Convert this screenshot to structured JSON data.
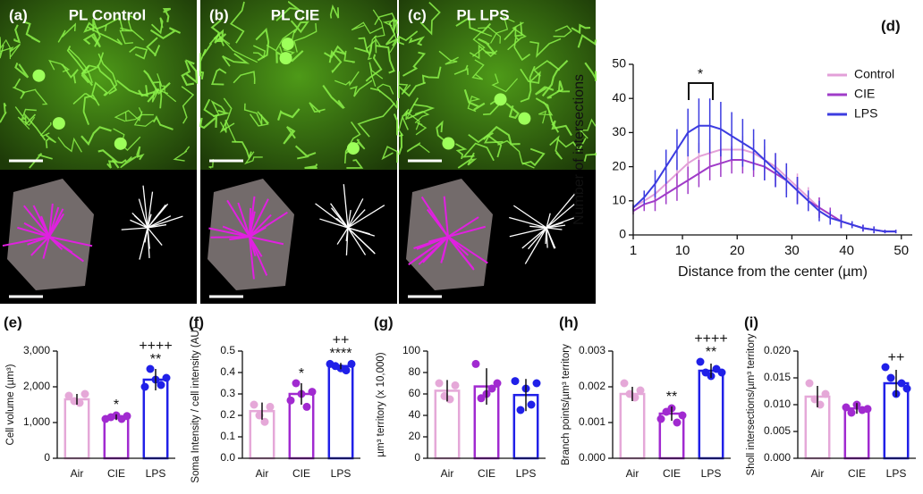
{
  "images": [
    {
      "label": "(a)",
      "title": "PL Control"
    },
    {
      "label": "(b)",
      "title": "PL CIE"
    },
    {
      "label": "(c)",
      "title": "PL LPS"
    }
  ],
  "chart_data": [
    {
      "type": "line",
      "label": "(d)",
      "xlabel": "Distance from the center (µm)",
      "ylabel": "Number of intersections",
      "annotation": "*",
      "x": [
        1,
        3,
        5,
        7,
        9,
        11,
        13,
        15,
        17,
        19,
        21,
        23,
        25,
        27,
        29,
        31,
        33,
        35,
        37,
        39,
        41,
        43,
        45,
        47,
        49
      ],
      "series": [
        {
          "name": "Control",
          "color": "#e3a0d8",
          "values": [
            8,
            10,
            12,
            15,
            18,
            21,
            23,
            24,
            25,
            25,
            25,
            24,
            22,
            20,
            17,
            14,
            11,
            8,
            6,
            4,
            3,
            2,
            1.5,
            1,
            1
          ],
          "errors": [
            1,
            2,
            3,
            3,
            4,
            4,
            4,
            4,
            4,
            4,
            4,
            4,
            4,
            4,
            4,
            4,
            3,
            3,
            2,
            2,
            1,
            1,
            1,
            0.5,
            0.5
          ]
        },
        {
          "name": "CIE",
          "color": "#a03cc8",
          "values": [
            7,
            9,
            10,
            12,
            14,
            16,
            18,
            20,
            21,
            22,
            22,
            21,
            20,
            18,
            16,
            13,
            10,
            8,
            6,
            4,
            3,
            2,
            1.5,
            1,
            1
          ],
          "errors": [
            1,
            2,
            3,
            3,
            4,
            4,
            4,
            4,
            4,
            4,
            4,
            4,
            4,
            4,
            4,
            4,
            3,
            3,
            2,
            2,
            1,
            1,
            1,
            0.5,
            0.5
          ]
        },
        {
          "name": "LPS",
          "color": "#3c3ce0",
          "values": [
            8,
            11,
            15,
            20,
            25,
            30,
            32,
            32,
            31,
            29,
            27,
            25,
            22,
            19,
            16,
            13,
            10,
            7,
            5,
            4,
            3,
            2,
            1.5,
            1,
            1
          ],
          "errors": [
            1,
            2,
            4,
            5,
            6,
            7,
            8,
            8,
            8,
            7,
            7,
            6,
            6,
            5,
            5,
            4,
            3,
            3,
            2,
            2,
            1,
            1,
            1,
            0.5,
            0.5
          ]
        }
      ],
      "xlim": [
        1,
        52
      ],
      "xticks": [
        1,
        10,
        20,
        30,
        40,
        50
      ],
      "ylim": [
        0,
        50
      ],
      "yticks": [
        0,
        10,
        20,
        30,
        40,
        50
      ],
      "legend": "upper right"
    },
    {
      "type": "bar",
      "label": "(e)",
      "ylabel": "Cell volume  (µm³)",
      "categories": [
        "Air",
        "CIE",
        "LPS"
      ],
      "colors": [
        "#e5a8d8",
        "#a12ad0",
        "#2020e8"
      ],
      "values": [
        1650,
        1150,
        2200
      ],
      "errors": [
        150,
        80,
        300
      ],
      "points": [
        [
          1750,
          1600,
          1550,
          1800
        ],
        [
          1100,
          1150,
          1200,
          1100,
          1180
        ],
        [
          2000,
          2500,
          2200,
          2050,
          2250
        ]
      ],
      "annotations": [
        [],
        [
          "*"
        ],
        [
          "++++",
          "**"
        ]
      ],
      "ylim": [
        0,
        3000
      ],
      "yticks": [
        0,
        {
          "value": 1000,
          "label": "1,000"
        },
        {
          "value": 2000,
          "label": "2,000"
        },
        {
          "value": 3000,
          "label": "3,000"
        }
      ]
    },
    {
      "type": "bar",
      "label": "(f)",
      "ylabel": "Soma Intensity / cell intensity (AU)",
      "categories": [
        "Air",
        "CIE",
        "LPS"
      ],
      "colors": [
        "#e5a8d8",
        "#a12ad0",
        "#2020e8"
      ],
      "values": [
        0.22,
        0.3,
        0.43
      ],
      "errors": [
        0.04,
        0.05,
        0.015
      ],
      "points": [
        [
          0.25,
          0.2,
          0.17,
          0.24
        ],
        [
          0.27,
          0.35,
          0.3,
          0.24,
          0.31
        ],
        [
          0.44,
          0.43,
          0.42,
          0.41,
          0.44
        ]
      ],
      "annotations": [
        [],
        [
          "*"
        ],
        [
          "++",
          "****"
        ]
      ],
      "ylim": [
        0,
        0.5
      ],
      "yticks": [
        {
          "value": 0,
          "label": "0.0"
        },
        0.1,
        0.2,
        0.3,
        0.4,
        0.5
      ]
    },
    {
      "type": "bar",
      "label": "(g)",
      "ylabel": "µm³ territory (x 10,000)",
      "categories": [
        "Air",
        "CIE",
        "LPS"
      ],
      "colors": [
        "#e5a8d8",
        "#a12ad0",
        "#2020e8"
      ],
      "values": [
        63,
        67,
        59
      ],
      "errors": [
        10,
        17,
        15
      ],
      "points": [
        [
          70,
          58,
          55,
          68
        ],
        [
          88,
          56,
          60,
          65,
          70
        ],
        [
          72,
          45,
          65,
          50,
          70
        ]
      ],
      "annotations": [
        [],
        [],
        []
      ],
      "ylim": [
        0,
        100
      ],
      "yticks": [
        0,
        20,
        40,
        60,
        80,
        100
      ]
    },
    {
      "type": "bar",
      "label": "(h)",
      "ylabel": "Branch points/µm³ territory",
      "categories": [
        "Air",
        "CIE",
        "LPS"
      ],
      "colors": [
        "#e5a8d8",
        "#a12ad0",
        "#2020e8"
      ],
      "values": [
        0.0018,
        0.00125,
        0.00245
      ],
      "errors": [
        0.0002,
        0.0002,
        0.0002
      ],
      "points": [
        [
          0.0021,
          0.0018,
          0.0017,
          0.0019
        ],
        [
          0.0011,
          0.0013,
          0.0014,
          0.001,
          0.0012
        ],
        [
          0.0027,
          0.0024,
          0.0023,
          0.0025,
          0.0024
        ]
      ],
      "annotations": [
        [],
        [
          "**"
        ],
        [
          "++++",
          "**"
        ]
      ],
      "ylim": [
        0,
        0.003
      ],
      "yticks": [
        {
          "value": 0,
          "label": "0.000"
        },
        {
          "value": 0.001,
          "label": "0.001"
        },
        {
          "value": 0.002,
          "label": "0.002"
        },
        {
          "value": 0.003,
          "label": "0.003"
        }
      ]
    },
    {
      "type": "bar",
      "label": "(i)",
      "ylabel": "Sholl intersections/µm³ territory",
      "categories": [
        "Air",
        "CIE",
        "LPS"
      ],
      "colors": [
        "#e5a8d8",
        "#a12ad0",
        "#2020e8"
      ],
      "values": [
        0.0115,
        0.0093,
        0.014
      ],
      "errors": [
        0.002,
        0.001,
        0.0025
      ],
      "points": [
        [
          0.014,
          0.011,
          0.01,
          0.012
        ],
        [
          0.0095,
          0.0085,
          0.01,
          0.009,
          0.0092
        ],
        [
          0.017,
          0.015,
          0.012,
          0.014,
          0.013
        ]
      ],
      "annotations": [
        [],
        [],
        [
          "++"
        ]
      ],
      "ylim": [
        0,
        0.02
      ],
      "yticks": [
        {
          "value": 0,
          "label": "0.000"
        },
        {
          "value": 0.005,
          "label": "0.005"
        },
        {
          "value": 0.01,
          "label": "0.010"
        },
        {
          "value": 0.015,
          "label": "0.015"
        },
        {
          "value": 0.02,
          "label": "0.020"
        }
      ]
    }
  ]
}
